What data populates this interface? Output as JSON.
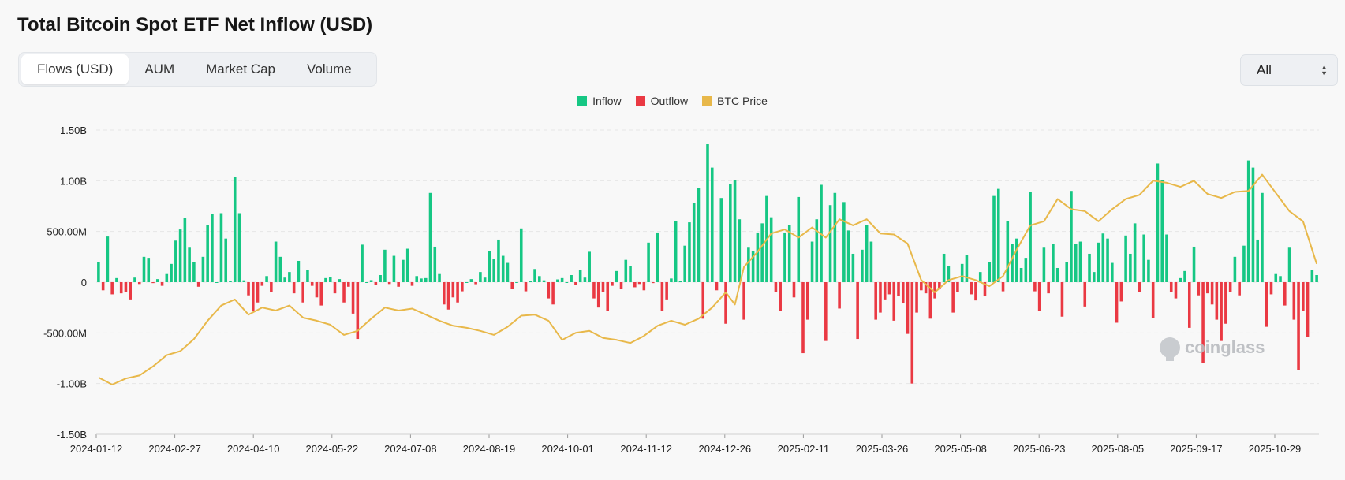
{
  "header": {
    "title": "Total Bitcoin Spot ETF Net Inflow (USD)"
  },
  "tabs": [
    {
      "label": "Flows (USD)",
      "active": true
    },
    {
      "label": "AUM",
      "active": false
    },
    {
      "label": "Market Cap",
      "active": false
    },
    {
      "label": "Volume",
      "active": false
    }
  ],
  "range": {
    "selected": "All"
  },
  "watermark": "coinglass",
  "colors": {
    "inflow": "#16c784",
    "outflow": "#ea3943",
    "price": "#e8b84a"
  },
  "chart_data": {
    "type": "bar",
    "title": "Total Bitcoin Spot ETF Net Inflow (USD)",
    "legend": [
      {
        "name": "Inflow",
        "color": "#16c784"
      },
      {
        "name": "Outflow",
        "color": "#ea3943"
      },
      {
        "name": "BTC Price",
        "color": "#e8b84a"
      }
    ],
    "legend_position": "top-center",
    "grid": true,
    "ylim": [
      -1500000000,
      1500000000
    ],
    "y_ticks": [
      {
        "value": 1500000000,
        "label": "1.50B"
      },
      {
        "value": 1000000000,
        "label": "1.00B"
      },
      {
        "value": 500000000,
        "label": "500.00M"
      },
      {
        "value": 0,
        "label": "0"
      },
      {
        "value": -500000000,
        "label": "-500.00M"
      },
      {
        "value": -1000000000,
        "label": "-1.00B"
      },
      {
        "value": -1500000000,
        "label": "-1.50B"
      }
    ],
    "x_tick_labels": [
      "2024-01-12",
      "2024-02-27",
      "2024-04-10",
      "2024-05-22",
      "2024-07-08",
      "2024-08-19",
      "2024-10-01",
      "2024-11-12",
      "2024-12-26",
      "2025-02-11",
      "2025-03-26",
      "2025-05-08",
      "2025-06-23",
      "2025-08-05",
      "2025-09-17",
      "2025-10-29"
    ],
    "bar_keypoints": [
      [
        0,
        200
      ],
      [
        1,
        -80
      ],
      [
        2,
        450
      ],
      [
        3,
        -120
      ],
      [
        4,
        40
      ],
      [
        5,
        -110
      ],
      [
        6,
        -100
      ],
      [
        7,
        -170
      ],
      [
        10,
        250
      ],
      [
        11,
        240
      ],
      [
        13,
        30
      ],
      [
        15,
        80
      ],
      [
        16,
        180
      ],
      [
        17,
        410
      ],
      [
        18,
        520
      ],
      [
        19,
        630
      ],
      [
        20,
        340
      ],
      [
        21,
        200
      ],
      [
        23,
        250
      ],
      [
        24,
        560
      ],
      [
        25,
        670
      ],
      [
        27,
        680
      ],
      [
        28,
        430
      ],
      [
        30,
        1040
      ],
      [
        31,
        680
      ],
      [
        33,
        -130
      ],
      [
        34,
        -280
      ],
      [
        35,
        -200
      ],
      [
        37,
        60
      ],
      [
        38,
        -100
      ],
      [
        39,
        400
      ],
      [
        40,
        250
      ],
      [
        42,
        100
      ],
      [
        43,
        -110
      ],
      [
        44,
        210
      ],
      [
        45,
        -200
      ],
      [
        46,
        120
      ],
      [
        48,
        -150
      ],
      [
        49,
        -230
      ],
      [
        50,
        40
      ],
      [
        51,
        50
      ],
      [
        52,
        -110
      ],
      [
        53,
        30
      ],
      [
        54,
        -200
      ],
      [
        56,
        -310
      ],
      [
        57,
        -560
      ],
      [
        58,
        370
      ],
      [
        60,
        20
      ],
      [
        62,
        70
      ],
      [
        63,
        320
      ],
      [
        65,
        260
      ],
      [
        67,
        220
      ],
      [
        68,
        330
      ],
      [
        70,
        60
      ],
      [
        72,
        40
      ],
      [
        73,
        880
      ],
      [
        74,
        350
      ],
      [
        75,
        80
      ],
      [
        76,
        -220
      ],
      [
        77,
        -270
      ],
      [
        78,
        -150
      ],
      [
        79,
        -200
      ],
      [
        80,
        -90
      ],
      [
        82,
        30
      ],
      [
        83,
        -20
      ],
      [
        84,
        100
      ],
      [
        86,
        310
      ],
      [
        87,
        230
      ],
      [
        88,
        420
      ],
      [
        89,
        260
      ],
      [
        90,
        190
      ],
      [
        91,
        -70
      ],
      [
        93,
        530
      ],
      [
        94,
        -90
      ],
      [
        96,
        130
      ],
      [
        97,
        60
      ],
      [
        99,
        -160
      ],
      [
        100,
        -220
      ],
      [
        102,
        40
      ],
      [
        104,
        70
      ],
      [
        106,
        120
      ],
      [
        108,
        300
      ],
      [
        109,
        -160
      ],
      [
        110,
        -250
      ],
      [
        111,
        -100
      ],
      [
        112,
        -280
      ],
      [
        114,
        110
      ],
      [
        115,
        -70
      ],
      [
        116,
        220
      ],
      [
        117,
        160
      ],
      [
        118,
        -50
      ],
      [
        120,
        -80
      ],
      [
        121,
        390
      ],
      [
        123,
        490
      ],
      [
        124,
        -280
      ],
      [
        125,
        -170
      ],
      [
        127,
        600
      ],
      [
        129,
        360
      ],
      [
        130,
        590
      ],
      [
        131,
        780
      ],
      [
        132,
        930
      ],
      [
        133,
        -360
      ],
      [
        134,
        1360
      ],
      [
        135,
        1130
      ],
      [
        136,
        -80
      ],
      [
        137,
        830
      ],
      [
        138,
        -410
      ],
      [
        139,
        970
      ],
      [
        140,
        1010
      ],
      [
        141,
        620
      ],
      [
        142,
        -370
      ],
      [
        143,
        340
      ],
      [
        144,
        310
      ],
      [
        145,
        490
      ],
      [
        146,
        580
      ],
      [
        147,
        850
      ],
      [
        148,
        640
      ],
      [
        149,
        -100
      ],
      [
        150,
        -280
      ],
      [
        151,
        490
      ],
      [
        152,
        560
      ],
      [
        153,
        -150
      ],
      [
        154,
        840
      ],
      [
        155,
        -700
      ],
      [
        156,
        -370
      ],
      [
        157,
        400
      ],
      [
        158,
        620
      ],
      [
        159,
        960
      ],
      [
        160,
        -580
      ],
      [
        161,
        760
      ],
      [
        162,
        880
      ],
      [
        163,
        -260
      ],
      [
        164,
        790
      ],
      [
        165,
        510
      ],
      [
        166,
        280
      ],
      [
        167,
        -560
      ],
      [
        168,
        320
      ],
      [
        169,
        560
      ],
      [
        170,
        400
      ],
      [
        171,
        -370
      ],
      [
        172,
        -300
      ],
      [
        173,
        -170
      ],
      [
        174,
        -120
      ],
      [
        175,
        -380
      ],
      [
        176,
        -140
      ],
      [
        177,
        -210
      ],
      [
        178,
        -510
      ],
      [
        179,
        -1000
      ],
      [
        180,
        -300
      ],
      [
        181,
        -80
      ],
      [
        182,
        -110
      ],
      [
        183,
        -360
      ],
      [
        184,
        -160
      ],
      [
        185,
        -70
      ],
      [
        186,
        280
      ],
      [
        187,
        160
      ],
      [
        188,
        -300
      ],
      [
        189,
        -100
      ],
      [
        190,
        180
      ],
      [
        191,
        270
      ],
      [
        192,
        -120
      ],
      [
        193,
        -180
      ],
      [
        194,
        100
      ],
      [
        195,
        -140
      ],
      [
        196,
        200
      ],
      [
        197,
        850
      ],
      [
        198,
        920
      ],
      [
        199,
        -90
      ],
      [
        200,
        600
      ],
      [
        201,
        380
      ],
      [
        202,
        430
      ],
      [
        203,
        140
      ],
      [
        204,
        240
      ],
      [
        205,
        890
      ],
      [
        206,
        -90
      ],
      [
        207,
        -280
      ],
      [
        208,
        340
      ],
      [
        209,
        -110
      ],
      [
        210,
        380
      ],
      [
        211,
        140
      ],
      [
        212,
        -340
      ],
      [
        213,
        200
      ],
      [
        214,
        900
      ],
      [
        215,
        380
      ],
      [
        216,
        400
      ],
      [
        217,
        -240
      ],
      [
        218,
        280
      ],
      [
        219,
        100
      ],
      [
        220,
        390
      ],
      [
        221,
        480
      ],
      [
        222,
        430
      ],
      [
        223,
        190
      ],
      [
        224,
        -400
      ],
      [
        225,
        -190
      ],
      [
        226,
        460
      ],
      [
        227,
        280
      ],
      [
        228,
        580
      ],
      [
        229,
        -100
      ],
      [
        230,
        470
      ],
      [
        231,
        220
      ],
      [
        232,
        -350
      ],
      [
        233,
        1170
      ],
      [
        234,
        1010
      ],
      [
        235,
        470
      ],
      [
        236,
        -100
      ],
      [
        237,
        -160
      ],
      [
        238,
        40
      ],
      [
        239,
        110
      ],
      [
        240,
        -450
      ],
      [
        241,
        350
      ],
      [
        242,
        -130
      ],
      [
        243,
        -800
      ],
      [
        244,
        -110
      ],
      [
        245,
        -220
      ],
      [
        246,
        -370
      ],
      [
        247,
        -580
      ],
      [
        248,
        -410
      ],
      [
        249,
        -100
      ],
      [
        250,
        250
      ],
      [
        251,
        -130
      ],
      [
        252,
        360
      ],
      [
        253,
        1200
      ],
      [
        254,
        1130
      ],
      [
        255,
        420
      ],
      [
        256,
        880
      ],
      [
        257,
        -440
      ],
      [
        258,
        -120
      ],
      [
        259,
        80
      ],
      [
        260,
        60
      ],
      [
        261,
        -230
      ],
      [
        262,
        340
      ],
      [
        263,
        -370
      ],
      [
        264,
        -870
      ],
      [
        265,
        -280
      ],
      [
        266,
        -540
      ],
      [
        267,
        120
      ],
      [
        268,
        70
      ]
    ],
    "bar_count": 269,
    "price_keypoints": [
      [
        0,
        -940
      ],
      [
        3,
        -1010
      ],
      [
        6,
        -950
      ],
      [
        9,
        -920
      ],
      [
        12,
        -830
      ],
      [
        15,
        -720
      ],
      [
        18,
        -680
      ],
      [
        21,
        -560
      ],
      [
        24,
        -380
      ],
      [
        27,
        -230
      ],
      [
        30,
        -170
      ],
      [
        33,
        -320
      ],
      [
        36,
        -250
      ],
      [
        39,
        -280
      ],
      [
        42,
        -230
      ],
      [
        45,
        -350
      ],
      [
        48,
        -380
      ],
      [
        51,
        -420
      ],
      [
        54,
        -520
      ],
      [
        57,
        -480
      ],
      [
        60,
        -360
      ],
      [
        63,
        -250
      ],
      [
        66,
        -280
      ],
      [
        69,
        -260
      ],
      [
        72,
        -320
      ],
      [
        75,
        -380
      ],
      [
        78,
        -430
      ],
      [
        81,
        -450
      ],
      [
        84,
        -480
      ],
      [
        87,
        -520
      ],
      [
        90,
        -440
      ],
      [
        93,
        -330
      ],
      [
        96,
        -320
      ],
      [
        99,
        -380
      ],
      [
        102,
        -570
      ],
      [
        105,
        -500
      ],
      [
        108,
        -480
      ],
      [
        111,
        -550
      ],
      [
        114,
        -570
      ],
      [
        117,
        -600
      ],
      [
        120,
        -530
      ],
      [
        123,
        -430
      ],
      [
        126,
        -380
      ],
      [
        129,
        -420
      ],
      [
        132,
        -360
      ],
      [
        135,
        -250
      ],
      [
        138,
        -100
      ],
      [
        140,
        -220
      ],
      [
        142,
        150
      ],
      [
        145,
        300
      ],
      [
        148,
        480
      ],
      [
        151,
        520
      ],
      [
        154,
        440
      ],
      [
        157,
        540
      ],
      [
        160,
        440
      ],
      [
        163,
        620
      ],
      [
        166,
        560
      ],
      [
        169,
        620
      ],
      [
        172,
        480
      ],
      [
        175,
        470
      ],
      [
        178,
        380
      ],
      [
        181,
        20
      ],
      [
        184,
        -100
      ],
      [
        187,
        20
      ],
      [
        190,
        60
      ],
      [
        193,
        20
      ],
      [
        196,
        -40
      ],
      [
        199,
        60
      ],
      [
        202,
        320
      ],
      [
        205,
        560
      ],
      [
        208,
        600
      ],
      [
        211,
        820
      ],
      [
        214,
        720
      ],
      [
        217,
        700
      ],
      [
        220,
        600
      ],
      [
        223,
        720
      ],
      [
        226,
        820
      ],
      [
        229,
        860
      ],
      [
        232,
        1000
      ],
      [
        235,
        980
      ],
      [
        238,
        940
      ],
      [
        241,
        1000
      ],
      [
        244,
        870
      ],
      [
        247,
        830
      ],
      [
        250,
        890
      ],
      [
        253,
        900
      ],
      [
        256,
        1060
      ],
      [
        259,
        880
      ],
      [
        262,
        700
      ],
      [
        265,
        600
      ],
      [
        268,
        180
      ]
    ],
    "price_note": "BTC Price series plotted on unlabeled secondary axis, keypoints expressed in primary-axis units (M)"
  }
}
